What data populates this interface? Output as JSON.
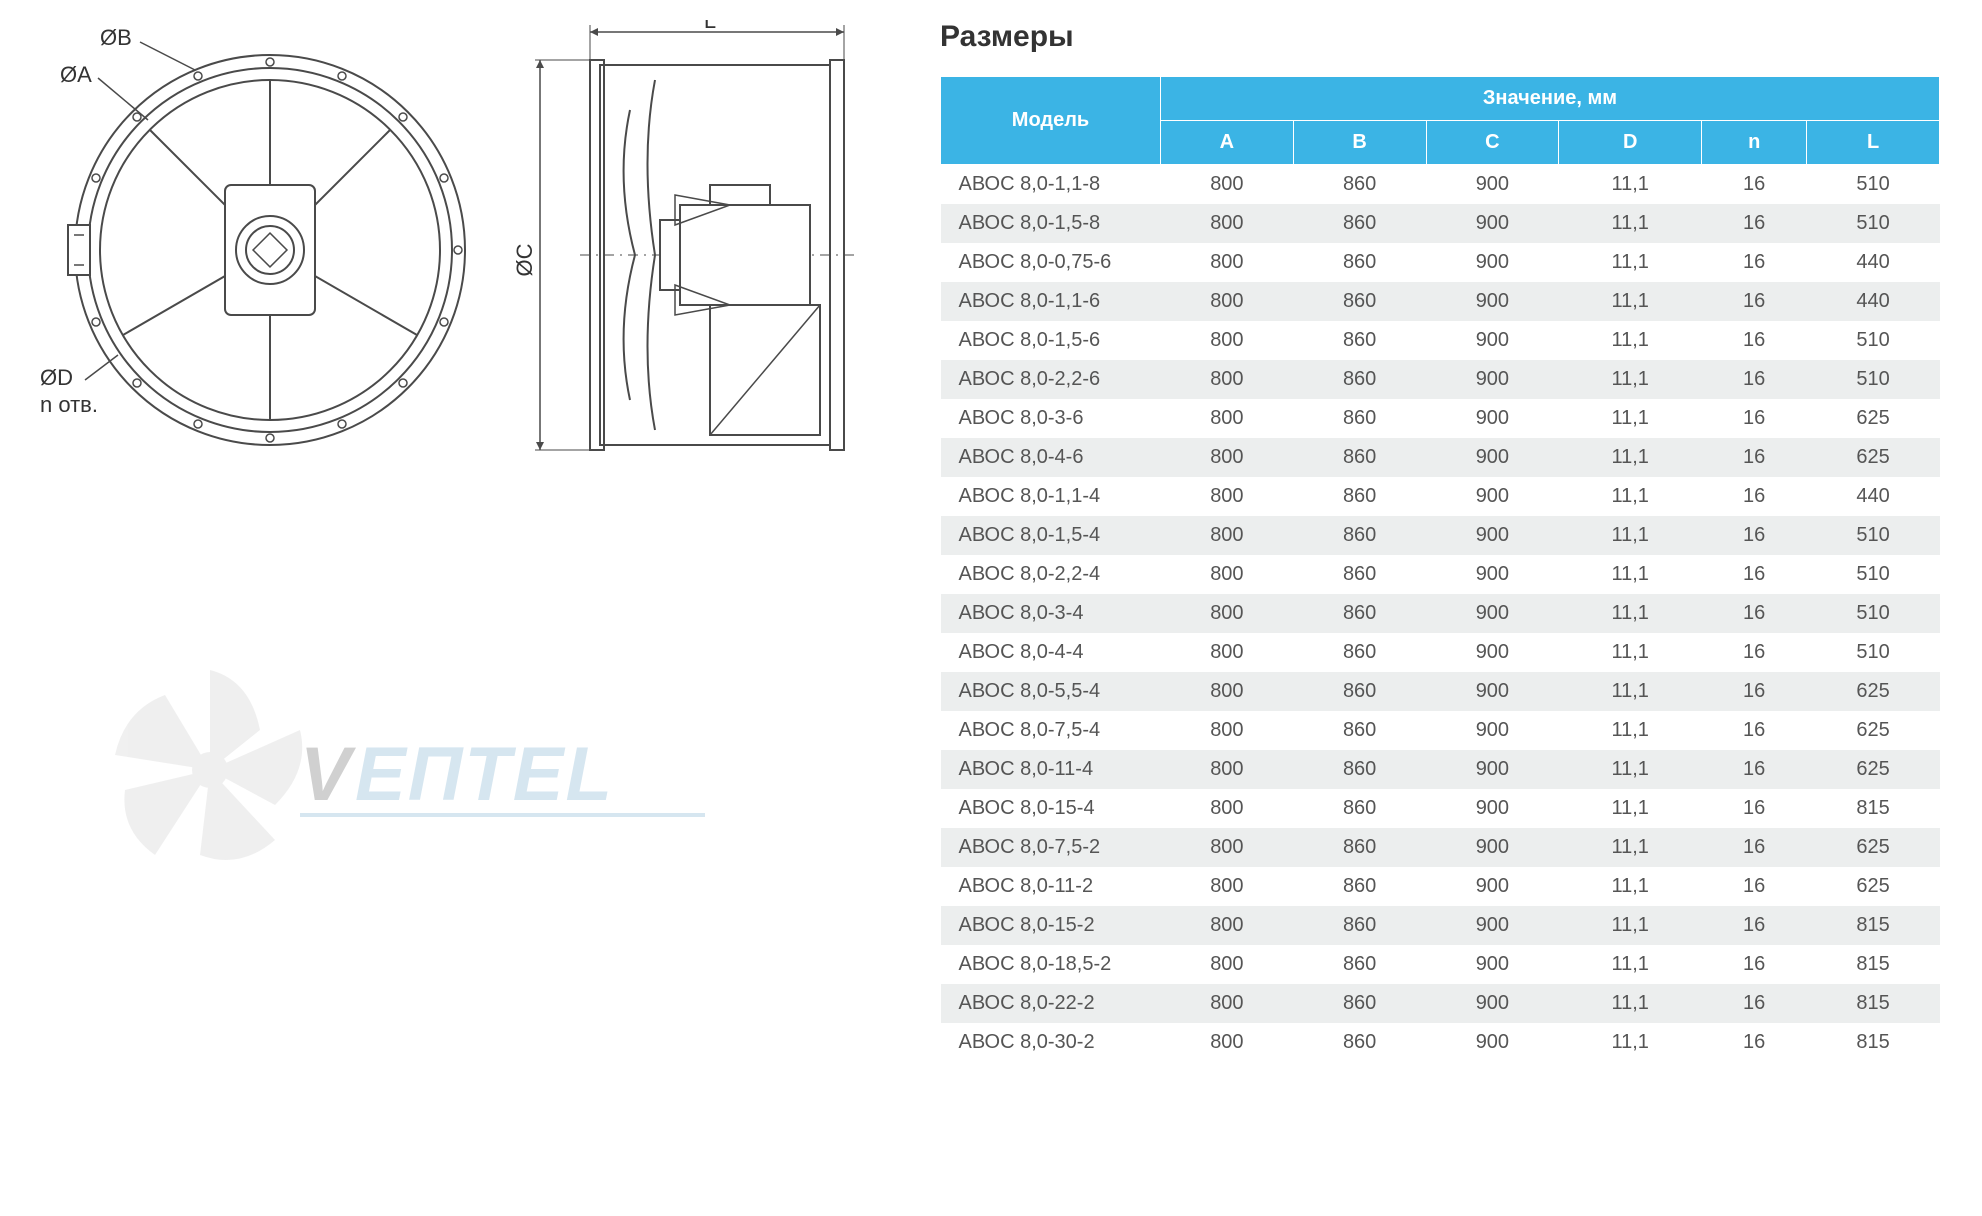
{
  "title": "Размеры",
  "diagram": {
    "labels": {
      "OB": "ØB",
      "OA": "ØA",
      "OC": "ØC",
      "OD": "ØD",
      "n_otv": "n отв.",
      "L": "L"
    },
    "stroke_color": "#4a4a4a",
    "stroke_width": 2,
    "background": "#ffffff"
  },
  "watermark": {
    "text_dark": "V",
    "text_light": "EПTEL",
    "font_size": 70,
    "color_dark": "#7a7a7a",
    "color_light": "#8bb9d6",
    "fan_color": "#cfcfcf"
  },
  "table": {
    "header_group": "Значение, мм",
    "header_model": "Модель",
    "columns": [
      "A",
      "B",
      "C",
      "D",
      "n",
      "L"
    ],
    "column_widths": [
      "220px",
      "130px",
      "130px",
      "130px",
      "130px",
      "130px",
      "130px"
    ],
    "header_bg": "#3bb4e5",
    "header_fg": "#ffffff",
    "row_bg_odd": "#ffffff",
    "row_bg_even": "#eceeee",
    "text_color": "#555555",
    "font_size": 20,
    "rows": [
      {
        "model": "АВОС 8,0-1,1-8",
        "A": "800",
        "B": "860",
        "C": "900",
        "D": "11,1",
        "n": "16",
        "L": "510"
      },
      {
        "model": "АВОС 8,0-1,5-8",
        "A": "800",
        "B": "860",
        "C": "900",
        "D": "11,1",
        "n": "16",
        "L": "510"
      },
      {
        "model": "АВОС 8,0-0,75-6",
        "A": "800",
        "B": "860",
        "C": "900",
        "D": "11,1",
        "n": "16",
        "L": "440"
      },
      {
        "model": "АВОС 8,0-1,1-6",
        "A": "800",
        "B": "860",
        "C": "900",
        "D": "11,1",
        "n": "16",
        "L": "440"
      },
      {
        "model": "АВОС 8,0-1,5-6",
        "A": "800",
        "B": "860",
        "C": "900",
        "D": "11,1",
        "n": "16",
        "L": "510"
      },
      {
        "model": "АВОС 8,0-2,2-6",
        "A": "800",
        "B": "860",
        "C": "900",
        "D": "11,1",
        "n": "16",
        "L": "510"
      },
      {
        "model": "АВОС 8,0-3-6",
        "A": "800",
        "B": "860",
        "C": "900",
        "D": "11,1",
        "n": "16",
        "L": "625"
      },
      {
        "model": "АВОС 8,0-4-6",
        "A": "800",
        "B": "860",
        "C": "900",
        "D": "11,1",
        "n": "16",
        "L": "625"
      },
      {
        "model": "АВОС 8,0-1,1-4",
        "A": "800",
        "B": "860",
        "C": "900",
        "D": "11,1",
        "n": "16",
        "L": "440"
      },
      {
        "model": "АВОС 8,0-1,5-4",
        "A": "800",
        "B": "860",
        "C": "900",
        "D": "11,1",
        "n": "16",
        "L": "510"
      },
      {
        "model": "АВОС 8,0-2,2-4",
        "A": "800",
        "B": "860",
        "C": "900",
        "D": "11,1",
        "n": "16",
        "L": "510"
      },
      {
        "model": "АВОС 8,0-3-4",
        "A": "800",
        "B": "860",
        "C": "900",
        "D": "11,1",
        "n": "16",
        "L": "510"
      },
      {
        "model": "АВОС 8,0-4-4",
        "A": "800",
        "B": "860",
        "C": "900",
        "D": "11,1",
        "n": "16",
        "L": "510"
      },
      {
        "model": "АВОС 8,0-5,5-4",
        "A": "800",
        "B": "860",
        "C": "900",
        "D": "11,1",
        "n": "16",
        "L": "625"
      },
      {
        "model": "АВОС 8,0-7,5-4",
        "A": "800",
        "B": "860",
        "C": "900",
        "D": "11,1",
        "n": "16",
        "L": "625"
      },
      {
        "model": "АВОС 8,0-11-4",
        "A": "800",
        "B": "860",
        "C": "900",
        "D": "11,1",
        "n": "16",
        "L": "625"
      },
      {
        "model": "АВОС 8,0-15-4",
        "A": "800",
        "B": "860",
        "C": "900",
        "D": "11,1",
        "n": "16",
        "L": "815"
      },
      {
        "model": "АВОС 8,0-7,5-2",
        "A": "800",
        "B": "860",
        "C": "900",
        "D": "11,1",
        "n": "16",
        "L": "625"
      },
      {
        "model": "АВОС 8,0-11-2",
        "A": "800",
        "B": "860",
        "C": "900",
        "D": "11,1",
        "n": "16",
        "L": "625"
      },
      {
        "model": "АВОС 8,0-15-2",
        "A": "800",
        "B": "860",
        "C": "900",
        "D": "11,1",
        "n": "16",
        "L": "815"
      },
      {
        "model": "АВОС 8,0-18,5-2",
        "A": "800",
        "B": "860",
        "C": "900",
        "D": "11,1",
        "n": "16",
        "L": "815"
      },
      {
        "model": "АВОС 8,0-22-2",
        "A": "800",
        "B": "860",
        "C": "900",
        "D": "11,1",
        "n": "16",
        "L": "815"
      },
      {
        "model": "АВОС 8,0-30-2",
        "A": "800",
        "B": "860",
        "C": "900",
        "D": "11,1",
        "n": "16",
        "L": "815"
      }
    ]
  }
}
